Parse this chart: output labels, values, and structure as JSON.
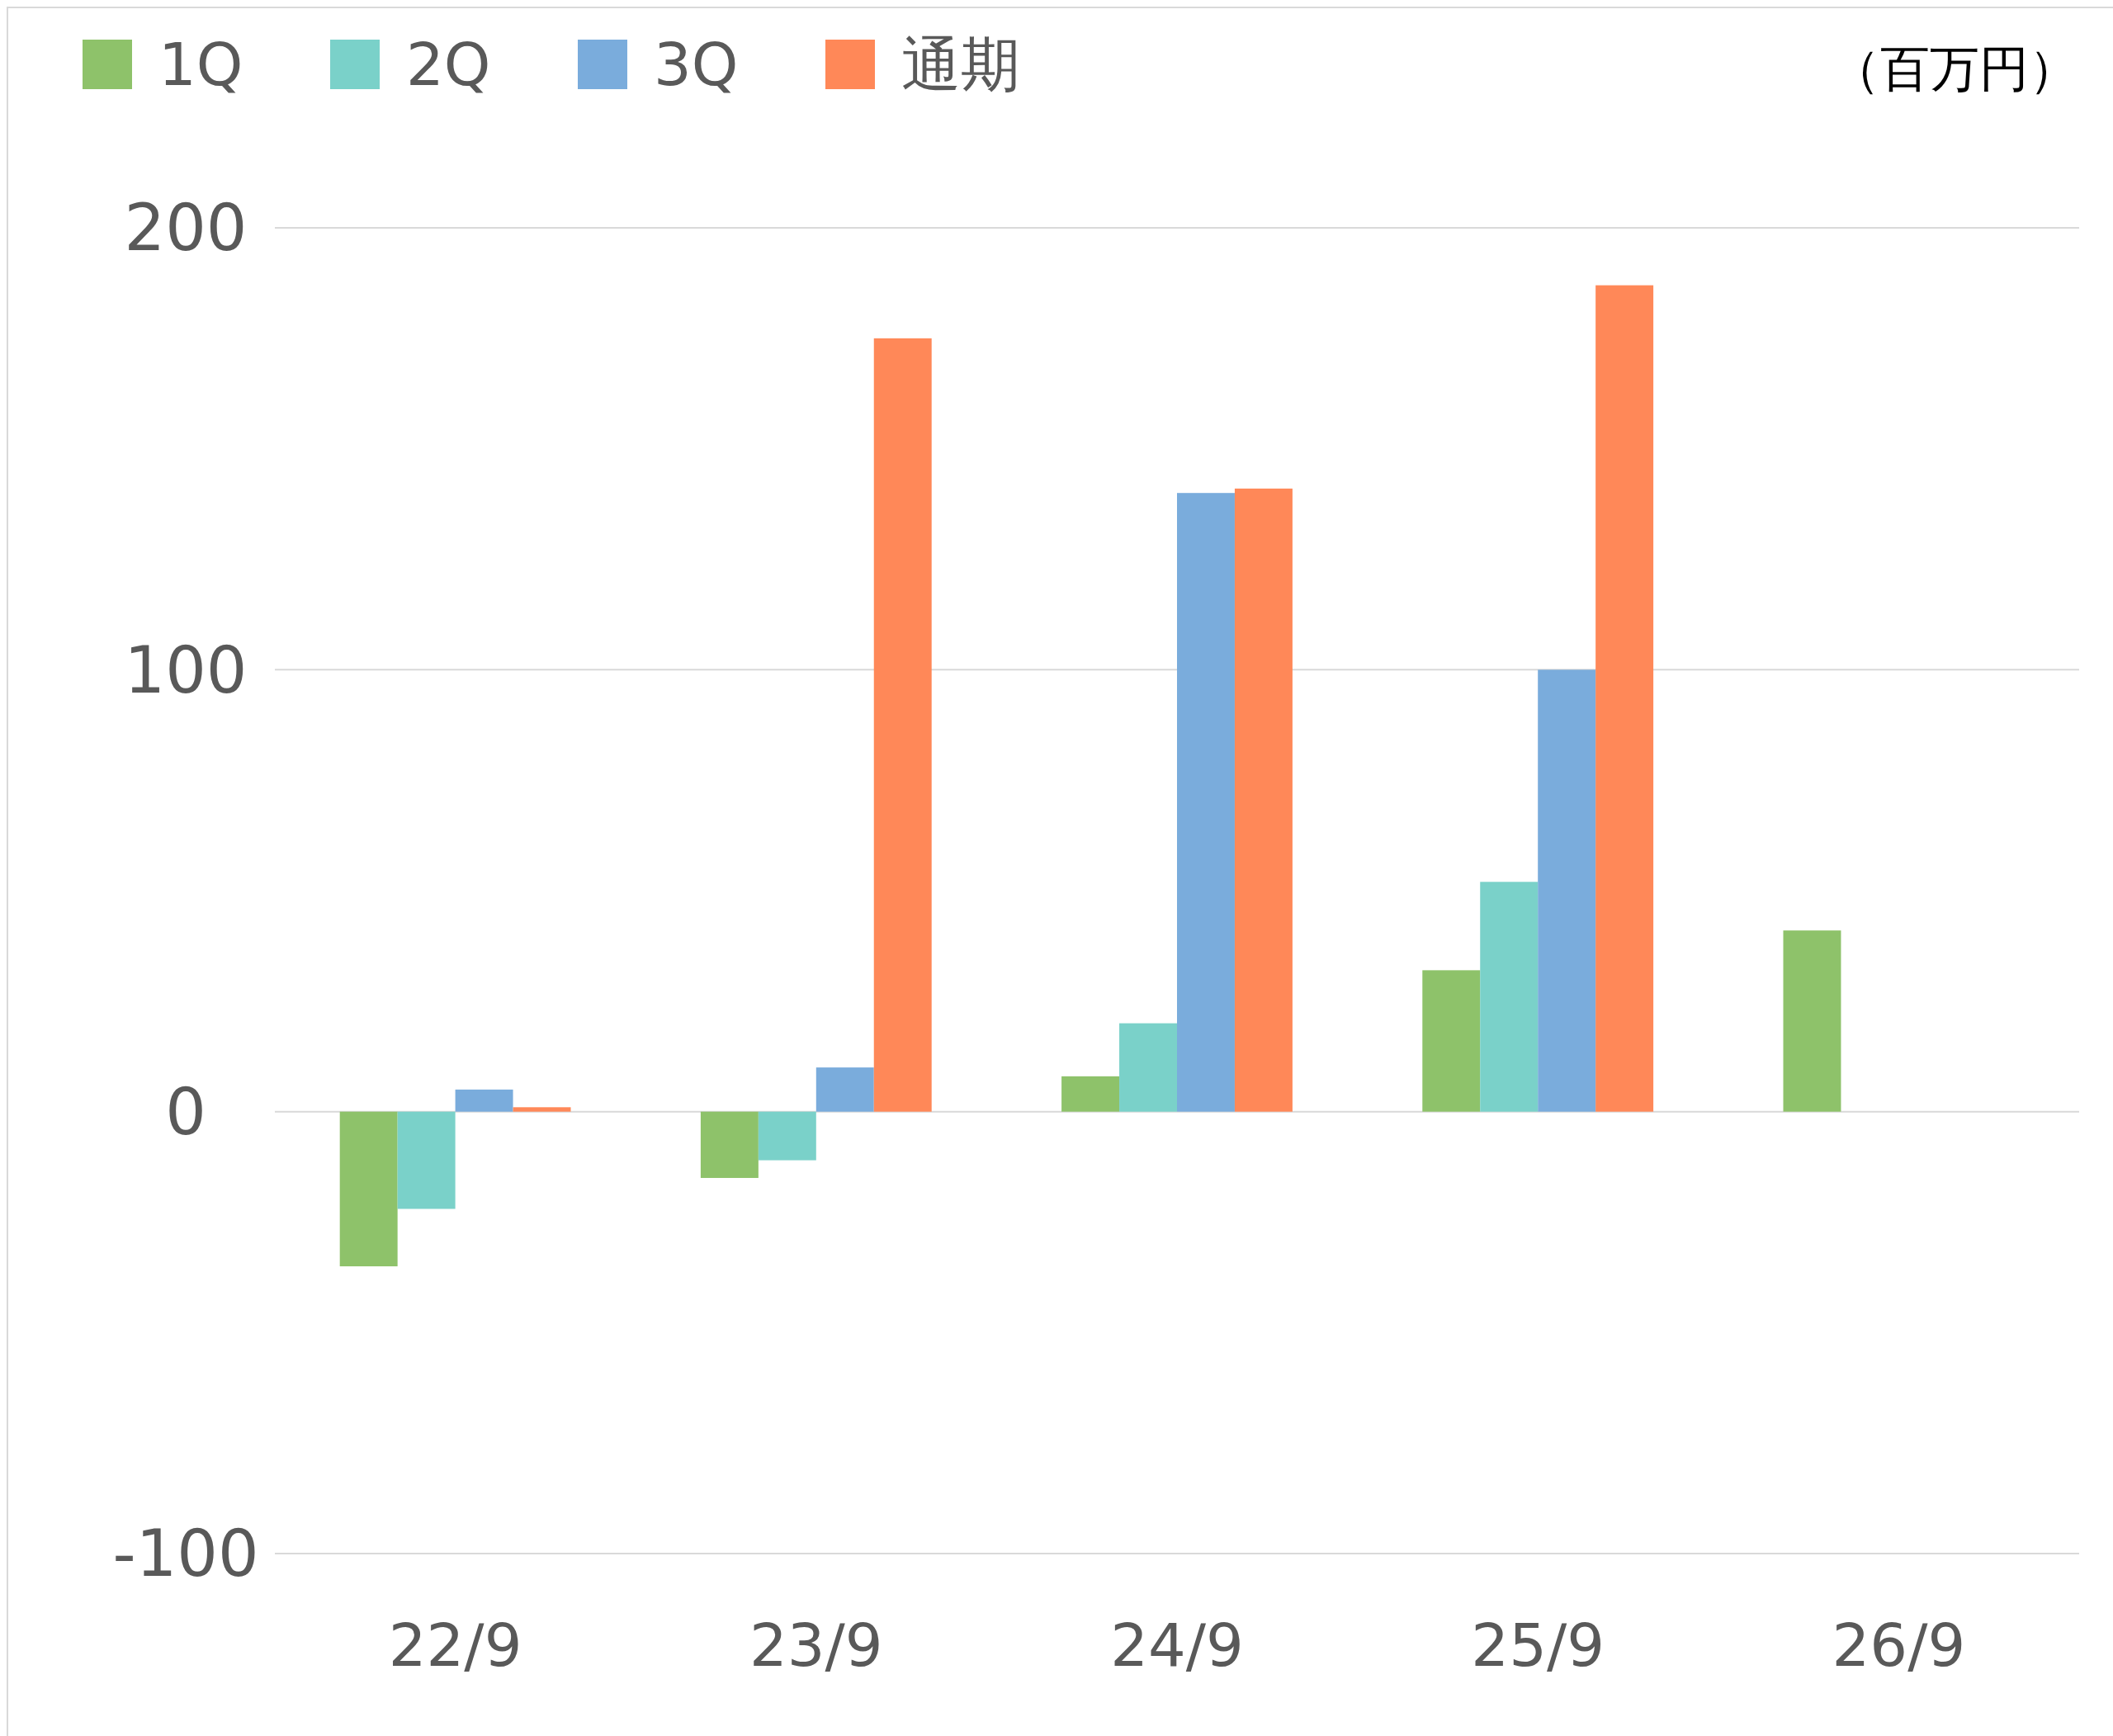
{
  "chart_data": {
    "type": "bar",
    "categories": [
      "22/9",
      "23/9",
      "24/9",
      "25/9",
      "26/9"
    ],
    "series": [
      {
        "name": "1Q",
        "color": "#8ec26a",
        "values": [
          -35,
          -15,
          8,
          32,
          41
        ]
      },
      {
        "name": "2Q",
        "color": "#7ad1c9",
        "values": [
          -22,
          -11,
          20,
          52,
          null
        ]
      },
      {
        "name": "3Q",
        "color": "#7aacdc",
        "values": [
          5,
          10,
          140,
          100,
          null
        ]
      },
      {
        "name": "通期",
        "color": "#ff8858",
        "values": [
          1,
          175,
          141,
          187,
          null
        ]
      }
    ],
    "ylim": [
      -100,
      200
    ],
    "yticks": [
      -100,
      0,
      100,
      200
    ],
    "grid": "y",
    "legend": "top left",
    "annotations": [
      "（百万円）"
    ]
  }
}
